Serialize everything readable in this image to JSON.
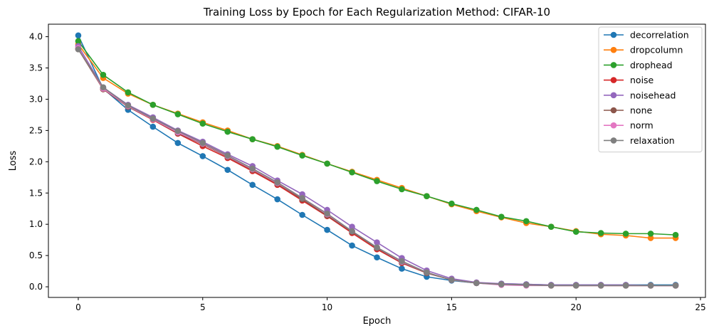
{
  "chart_data": {
    "type": "line",
    "title": "Training Loss by Epoch for Each Regularization Method: CIFAR-10",
    "xlabel": "Epoch",
    "ylabel": "Loss",
    "xlim": [
      -1.2,
      25.2
    ],
    "ylim": [
      -0.17,
      4.2
    ],
    "xticks": [
      0,
      5,
      10,
      15,
      20,
      25
    ],
    "yticks": [
      0.0,
      0.5,
      1.0,
      1.5,
      2.0,
      2.5,
      3.0,
      3.5,
      4.0
    ],
    "ytick_labels": [
      "0.0",
      "0.5",
      "1.0",
      "1.5",
      "2.0",
      "2.5",
      "3.0",
      "3.5",
      "4.0"
    ],
    "grid": false,
    "legend_position": "top-right",
    "x": [
      0,
      1,
      2,
      3,
      4,
      5,
      6,
      7,
      8,
      9,
      10,
      11,
      12,
      13,
      14,
      15,
      16,
      17,
      18,
      19,
      20,
      21,
      22,
      23,
      24
    ],
    "series": [
      {
        "name": "decorrelation",
        "color": "#1f77b4",
        "values": [
          4.02,
          3.17,
          2.83,
          2.56,
          2.3,
          2.09,
          1.87,
          1.63,
          1.4,
          1.15,
          0.91,
          0.66,
          0.47,
          0.29,
          0.16,
          0.1,
          0.06,
          0.05,
          0.04,
          0.03,
          0.03,
          0.03,
          0.03,
          0.03,
          0.03
        ]
      },
      {
        "name": "dropcolumn",
        "color": "#ff7f0e",
        "values": [
          3.88,
          3.34,
          3.09,
          2.91,
          2.77,
          2.63,
          2.5,
          2.36,
          2.25,
          2.11,
          1.97,
          1.84,
          1.71,
          1.58,
          1.45,
          1.32,
          1.21,
          1.11,
          1.02,
          0.96,
          0.89,
          0.84,
          0.82,
          0.78,
          0.78
        ]
      },
      {
        "name": "drophead",
        "color": "#2ca02c",
        "values": [
          3.93,
          3.39,
          3.11,
          2.91,
          2.76,
          2.61,
          2.48,
          2.36,
          2.24,
          2.1,
          1.97,
          1.83,
          1.69,
          1.56,
          1.45,
          1.33,
          1.23,
          1.12,
          1.05,
          0.96,
          0.88,
          0.86,
          0.85,
          0.85,
          0.83
        ]
      },
      {
        "name": "noise",
        "color": "#d62728",
        "values": [
          3.81,
          3.16,
          2.88,
          2.67,
          2.45,
          2.25,
          2.06,
          1.85,
          1.63,
          1.38,
          1.13,
          0.86,
          0.6,
          0.38,
          0.22,
          0.11,
          0.06,
          0.04,
          0.03,
          0.02,
          0.02,
          0.02,
          0.02,
          0.02,
          0.02
        ]
      },
      {
        "name": "noisehead",
        "color": "#9467bd",
        "values": [
          3.85,
          3.19,
          2.91,
          2.71,
          2.5,
          2.32,
          2.12,
          1.93,
          1.7,
          1.48,
          1.23,
          0.96,
          0.71,
          0.46,
          0.26,
          0.13,
          0.07,
          0.05,
          0.04,
          0.03,
          0.03,
          0.03,
          0.03,
          0.02,
          0.02
        ]
      },
      {
        "name": "none",
        "color": "#8c564b",
        "values": [
          3.8,
          3.16,
          2.88,
          2.68,
          2.46,
          2.28,
          2.08,
          1.87,
          1.65,
          1.4,
          1.14,
          0.88,
          0.62,
          0.39,
          0.22,
          0.11,
          0.06,
          0.04,
          0.03,
          0.02,
          0.02,
          0.02,
          0.02,
          0.02,
          0.02
        ]
      },
      {
        "name": "norm",
        "color": "#e377c2",
        "values": [
          3.82,
          3.17,
          2.89,
          2.68,
          2.47,
          2.29,
          2.09,
          1.88,
          1.66,
          1.42,
          1.16,
          0.89,
          0.63,
          0.4,
          0.23,
          0.11,
          0.06,
          0.03,
          0.02,
          0.02,
          0.02,
          0.02,
          0.02,
          0.02,
          0.02
        ]
      },
      {
        "name": "relaxation",
        "color": "#7f7f7f",
        "values": [
          3.8,
          3.19,
          2.9,
          2.69,
          2.49,
          2.3,
          2.1,
          1.89,
          1.67,
          1.42,
          1.17,
          0.89,
          0.63,
          0.41,
          0.23,
          0.11,
          0.06,
          0.04,
          0.03,
          0.02,
          0.02,
          0.02,
          0.02,
          0.02,
          0.02
        ]
      }
    ]
  }
}
